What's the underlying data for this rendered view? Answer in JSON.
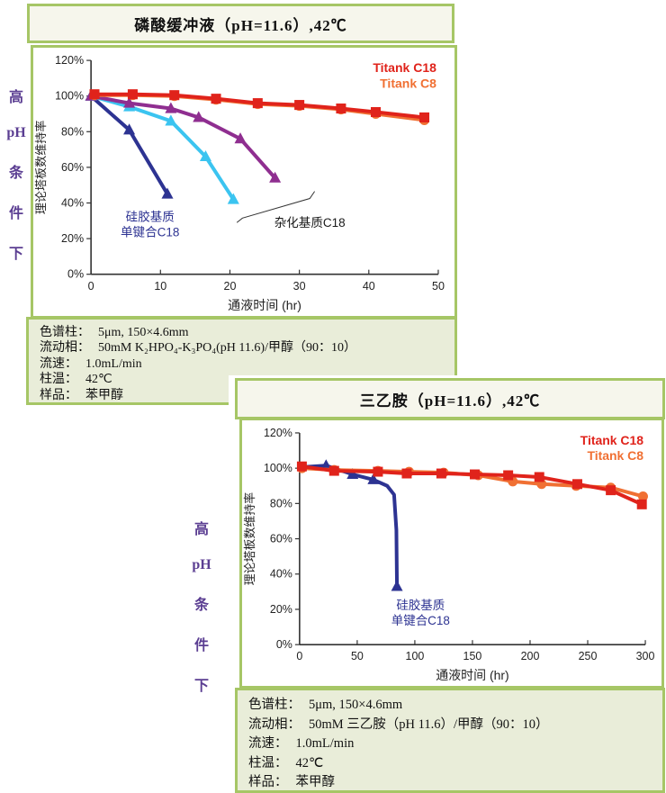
{
  "side_labels": {
    "chars": [
      "高",
      "pH",
      "条",
      "件",
      "下"
    ]
  },
  "panels": [
    {
      "specs": [
        {
          "label": "色谱柱：",
          "value": "5μm, 150×4.6mm"
        },
        {
          "label": "流动相：",
          "value": "50mM K₂HPO₄-K₃PO₄(pH 11.6)/甲醇（90：10）"
        },
        {
          "label": "流速：",
          "value": "1.0mL/min"
        },
        {
          "label": "柱温：",
          "value": "42℃"
        },
        {
          "label": "样品：",
          "value": "苯甲醇"
        }
      ]
    },
    {
      "specs": [
        {
          "label": "色谱柱：",
          "value": "5μm, 150×4.6mm"
        },
        {
          "label": "流动相：",
          "value": "50mM 三乙胺（pH 11.6）/甲醇（90：10）"
        },
        {
          "label": "流速：",
          "value": "1.0mL/min"
        },
        {
          "label": "柱温：",
          "value": "42℃"
        },
        {
          "label": "样品：",
          "value": "苯甲醇"
        }
      ]
    }
  ],
  "chart_data": [
    {
      "type": "line",
      "title": "磷酸缓冲液（pH=11.6）,42℃",
      "xlabel": "通液时间 (hr)",
      "ylabel": "理论塔板数维持率",
      "xlim": [
        0,
        50
      ],
      "xticks": [
        0,
        10,
        20,
        30,
        40,
        50
      ],
      "ylim": [
        0,
        120
      ],
      "yticks": [
        0,
        20,
        40,
        60,
        80,
        100,
        120
      ],
      "ytick_suffix": "%",
      "grid": false,
      "legend_position": "top-right",
      "legend": [
        {
          "label": "Titank C18",
          "color": "#e0231b"
        },
        {
          "label": "Titank C8",
          "color": "#f07033"
        }
      ],
      "series": [
        {
          "name": "硅胶基质单键合C18",
          "color": "#2d3392",
          "marker": "triangle",
          "x": [
            0,
            5.5,
            11
          ],
          "y": [
            100,
            81,
            45
          ]
        },
        {
          "name": "杂化基质C18 (a)",
          "color": "#3bc4f0",
          "marker": "triangle",
          "x": [
            0,
            5.5,
            11.5,
            16.5,
            20.5
          ],
          "y": [
            100,
            94,
            86,
            66,
            42
          ]
        },
        {
          "name": "杂化基质C18 (b)",
          "color": "#8f2e90",
          "marker": "triangle",
          "x": [
            0,
            5.5,
            11.5,
            15.5,
            21.5,
            26.5
          ],
          "y": [
            100,
            96,
            93,
            88,
            76,
            54
          ]
        },
        {
          "name": "Titank C8",
          "color": "#f07033",
          "marker": "circle",
          "x": [
            0.5,
            6,
            12,
            18,
            24,
            30,
            36,
            41,
            48
          ],
          "y": [
            100.5,
            100.5,
            100,
            98,
            95.5,
            94.5,
            92.5,
            90,
            86.5
          ]
        },
        {
          "name": "Titank C18",
          "color": "#e0231b",
          "marker": "square",
          "x": [
            0.5,
            6,
            12,
            18,
            24,
            30,
            36,
            41,
            48
          ],
          "y": [
            101,
            101,
            100.5,
            98.5,
            96,
            95,
            93,
            91,
            88
          ]
        }
      ],
      "annotations": [
        {
          "lines": [
            "硅胶基质",
            "单键合C18"
          ],
          "x": 8.5,
          "y": 30,
          "color": "#2d3392"
        },
        {
          "lines": [
            "杂化基质C18"
          ],
          "x": 31.5,
          "y": 26.5,
          "color": "#1a1a1a"
        }
      ],
      "shapes": [
        {
          "points": [
            [
              21,
              29
            ],
            [
              21.8,
              31.5
            ],
            [
              31.5,
              42.5
            ],
            [
              32.2,
              46.5
            ]
          ],
          "color": "#333333"
        }
      ]
    },
    {
      "type": "line",
      "title": "三乙胺（pH=11.6）,42℃",
      "xlabel": "通液时间 (hr)",
      "ylabel": "理论塔板数维持率",
      "xlim": [
        0,
        300
      ],
      "xticks": [
        0,
        50,
        100,
        150,
        200,
        250,
        300
      ],
      "ylim": [
        0,
        120
      ],
      "yticks": [
        0,
        20,
        40,
        60,
        80,
        100,
        120
      ],
      "ytick_suffix": "%",
      "grid": false,
      "legend_position": "top-right",
      "legend": [
        {
          "label": "Titank C18",
          "color": "#e0231b"
        },
        {
          "label": "Titank C8",
          "color": "#f07033"
        }
      ],
      "series": [
        {
          "name": "硅胶基质单键合C18",
          "color": "#2d3392",
          "marker": "triangle",
          "x": [
            0,
            23,
            46,
            64,
            76,
            82,
            84,
            84.5
          ],
          "y": [
            100.5,
            101.5,
            96.5,
            93.5,
            90,
            85,
            65,
            33
          ],
          "markers_at": [
            1,
            2,
            3,
            7
          ]
        },
        {
          "name": "Titank C8",
          "color": "#f07033",
          "marker": "circle",
          "x": [
            2,
            30,
            68,
            95,
            125,
            155,
            185,
            210,
            240,
            270,
            298
          ],
          "y": [
            100,
            99,
            98.5,
            98,
            97.5,
            96,
            92.5,
            91,
            90,
            89,
            84
          ]
        },
        {
          "name": "Titank C18",
          "color": "#e0231b",
          "marker": "square",
          "x": [
            2,
            30,
            68,
            93,
            123,
            152,
            181,
            208,
            241,
            270,
            297
          ],
          "y": [
            101,
            98.5,
            98,
            97,
            97,
            96.5,
            96,
            95,
            91,
            87.5,
            79.5
          ]
        }
      ],
      "annotations": [
        {
          "lines": [
            "硅胶基质",
            "单键合C18"
          ],
          "x": 105,
          "y": 20,
          "color": "#2d3392"
        }
      ],
      "shapes": []
    }
  ]
}
